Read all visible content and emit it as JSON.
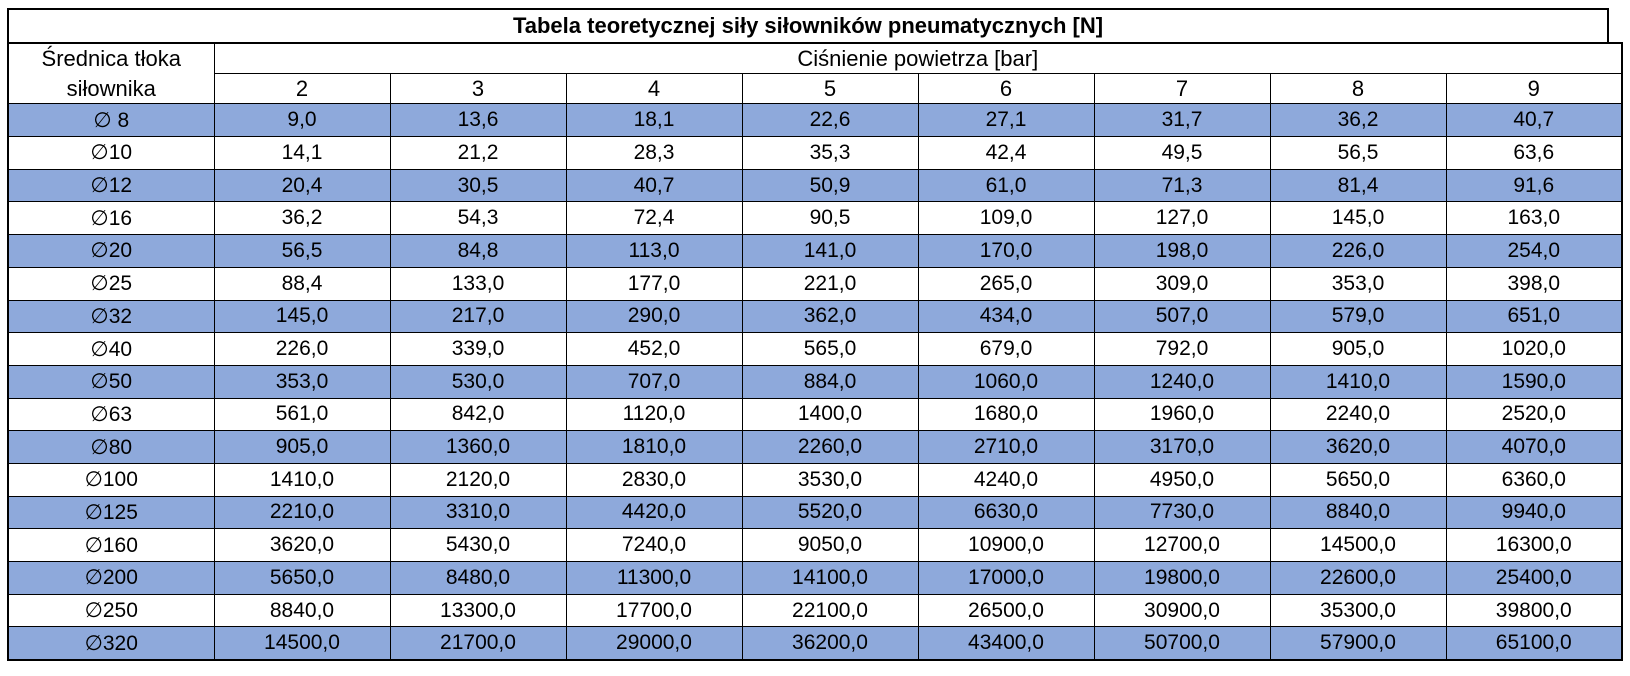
{
  "chart_data": {
    "type": "table",
    "title": "Tabela teoretycznej siły siłowników pneumatycznych [N]",
    "row_header": "Średnica tłoka siłownika",
    "column_group_header": "Ciśnienie powietrza [bar]",
    "columns": [
      "2",
      "3",
      "4",
      "5",
      "6",
      "7",
      "8",
      "9"
    ],
    "rows": [
      {
        "diameter": "∅ 8",
        "values": [
          "9,0",
          "13,6",
          "18,1",
          "22,6",
          "27,1",
          "31,7",
          "36,2",
          "40,7"
        ]
      },
      {
        "diameter": "∅10",
        "values": [
          "14,1",
          "21,2",
          "28,3",
          "35,3",
          "42,4",
          "49,5",
          "56,5",
          "63,6"
        ]
      },
      {
        "diameter": "∅12",
        "values": [
          "20,4",
          "30,5",
          "40,7",
          "50,9",
          "61,0",
          "71,3",
          "81,4",
          "91,6"
        ]
      },
      {
        "diameter": "∅16",
        "values": [
          "36,2",
          "54,3",
          "72,4",
          "90,5",
          "109,0",
          "127,0",
          "145,0",
          "163,0"
        ]
      },
      {
        "diameter": "∅20",
        "values": [
          "56,5",
          "84,8",
          "113,0",
          "141,0",
          "170,0",
          "198,0",
          "226,0",
          "254,0"
        ]
      },
      {
        "diameter": "∅25",
        "values": [
          "88,4",
          "133,0",
          "177,0",
          "221,0",
          "265,0",
          "309,0",
          "353,0",
          "398,0"
        ]
      },
      {
        "diameter": "∅32",
        "values": [
          "145,0",
          "217,0",
          "290,0",
          "362,0",
          "434,0",
          "507,0",
          "579,0",
          "651,0"
        ]
      },
      {
        "diameter": "∅40",
        "values": [
          "226,0",
          "339,0",
          "452,0",
          "565,0",
          "679,0",
          "792,0",
          "905,0",
          "1020,0"
        ]
      },
      {
        "diameter": "∅50",
        "values": [
          "353,0",
          "530,0",
          "707,0",
          "884,0",
          "1060,0",
          "1240,0",
          "1410,0",
          "1590,0"
        ]
      },
      {
        "diameter": "∅63",
        "values": [
          "561,0",
          "842,0",
          "1120,0",
          "1400,0",
          "1680,0",
          "1960,0",
          "2240,0",
          "2520,0"
        ]
      },
      {
        "diameter": "∅80",
        "values": [
          "905,0",
          "1360,0",
          "1810,0",
          "2260,0",
          "2710,0",
          "3170,0",
          "3620,0",
          "4070,0"
        ]
      },
      {
        "diameter": "∅100",
        "values": [
          "1410,0",
          "2120,0",
          "2830,0",
          "3530,0",
          "4240,0",
          "4950,0",
          "5650,0",
          "6360,0"
        ]
      },
      {
        "diameter": "∅125",
        "values": [
          "2210,0",
          "3310,0",
          "4420,0",
          "5520,0",
          "6630,0",
          "7730,0",
          "8840,0",
          "9940,0"
        ]
      },
      {
        "diameter": "∅160",
        "values": [
          "3620,0",
          "5430,0",
          "7240,0",
          "9050,0",
          "10900,0",
          "12700,0",
          "14500,0",
          "16300,0"
        ]
      },
      {
        "diameter": "∅200",
        "values": [
          "5650,0",
          "8480,0",
          "11300,0",
          "14100,0",
          "17000,0",
          "19800,0",
          "22600,0",
          "25400,0"
        ]
      },
      {
        "diameter": "∅250",
        "values": [
          "8840,0",
          "13300,0",
          "17700,0",
          "22100,0",
          "26500,0",
          "30900,0",
          "35300,0",
          "39800,0"
        ]
      },
      {
        "diameter": "∅320",
        "values": [
          "14500,0",
          "21700,0",
          "29000,0",
          "36200,0",
          "43400,0",
          "50700,0",
          "57900,0",
          "65100,0"
        ]
      }
    ]
  },
  "colors": {
    "row_highlight": "#8EA9DB",
    "row_default": "#FFFFFF",
    "border": "#000000",
    "text": "#000000"
  }
}
